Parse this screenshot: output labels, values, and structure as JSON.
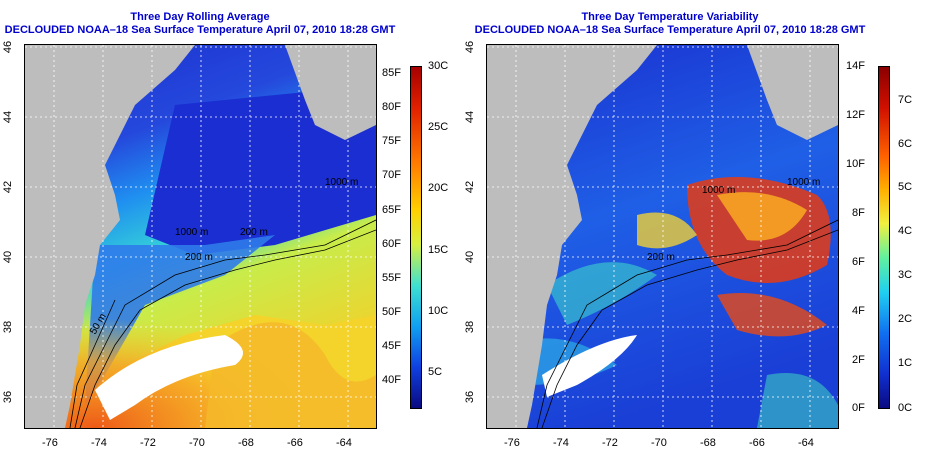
{
  "left_panel": {
    "title_line1": "Three Day Rolling Average",
    "title_line2": "DECLOUDED NOAA–18 Sea Surface Temperature April 07, 2010 18:28 GMT",
    "lon_ticks": [
      "-76",
      "-74",
      "-72",
      "-70",
      "-68",
      "-66",
      "-64"
    ],
    "lat_ticks": [
      "46",
      "44",
      "42",
      "40",
      "38",
      "36"
    ],
    "contour_labels": [
      "200 m",
      "200 m",
      "50 m",
      "1000 m",
      "1000 m"
    ],
    "colorbar_f": [
      "85F",
      "80F",
      "75F",
      "70F",
      "65F",
      "60F",
      "55F",
      "50F",
      "45F",
      "40F"
    ],
    "colorbar_c": [
      "30C",
      "25C",
      "20C",
      "15C",
      "10C",
      "5C"
    ]
  },
  "right_panel": {
    "title_line1": "Three Day Temperature Variability",
    "title_line2": "DECLOUDED NOAA–18 Sea Surface Temperature April 07, 2010 18:28 GMT",
    "lon_ticks": [
      "-76",
      "-74",
      "-72",
      "-70",
      "-68",
      "-66",
      "-64"
    ],
    "lat_ticks": [
      "46",
      "44",
      "42",
      "40",
      "38",
      "36"
    ],
    "contour_labels": [
      "200 m",
      "1000 m",
      "1000 m"
    ],
    "colorbar_f": [
      "14F",
      "12F",
      "10F",
      "8F",
      "6F",
      "4F",
      "2F",
      "0F"
    ],
    "colorbar_c": [
      "7C",
      "6C",
      "5C",
      "4C",
      "3C",
      "2C",
      "1C",
      "0C"
    ]
  },
  "colors": {
    "land": "#bdbdbd",
    "title": "#0000cc",
    "gridline": "#ffffff"
  }
}
